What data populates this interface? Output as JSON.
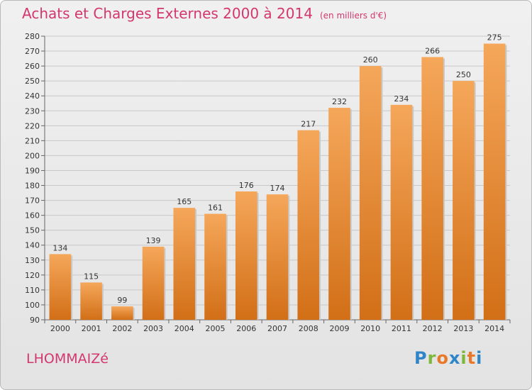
{
  "header": {
    "title": "Achats et Charges Externes 2000 à 2014",
    "subtitle": "(en milliers d'€)"
  },
  "footer": {
    "place": "LHOMMAIZé",
    "logo": "Proxiti"
  },
  "colors": {
    "bar_light": "#f5a75a",
    "bar_dark": "#d26f17",
    "title": "#d2376e"
  },
  "chart_data": {
    "type": "bar",
    "categories": [
      "2000",
      "2001",
      "2002",
      "2003",
      "2004",
      "2005",
      "2006",
      "2007",
      "2008",
      "2009",
      "2010",
      "2011",
      "2012",
      "2013",
      "2014"
    ],
    "values": [
      134,
      115,
      99,
      139,
      165,
      161,
      176,
      174,
      217,
      232,
      260,
      234,
      266,
      250,
      275
    ],
    "title": "Achats et Charges Externes 2000 à 2014",
    "xlabel": "",
    "ylabel": "",
    "ylim": [
      90,
      280
    ],
    "ytick_step": 10,
    "grid": true,
    "legend": "none"
  }
}
